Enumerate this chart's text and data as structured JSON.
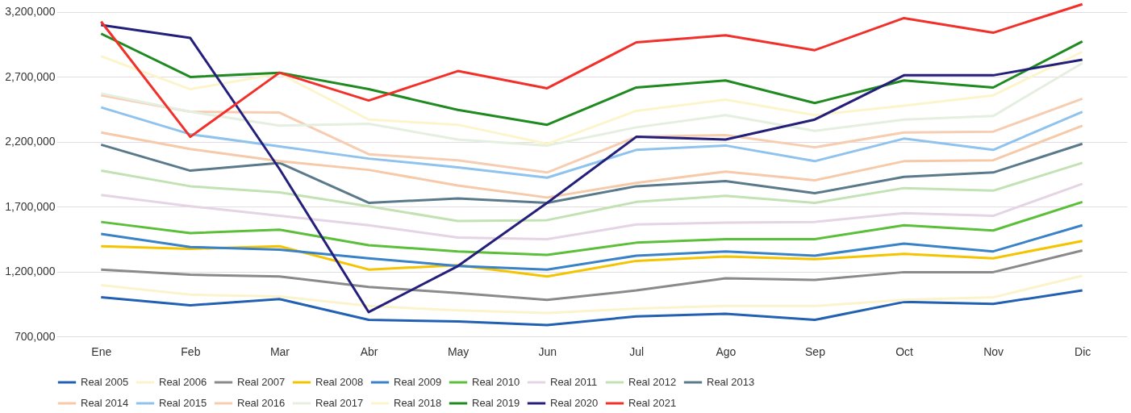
{
  "chart_data": {
    "type": "line",
    "categories": [
      "Ene",
      "Feb",
      "Mar",
      "Abr",
      "May",
      "Jun",
      "Jul",
      "Ago",
      "Sep",
      "Oct",
      "Nov",
      "Dic"
    ],
    "ylim": [
      700000,
      3280000
    ],
    "yticks": [
      {
        "value": 700000,
        "label": "700,000"
      },
      {
        "value": 1200000,
        "label": "1,200,000"
      },
      {
        "value": 1700000,
        "label": "1,700,000"
      },
      {
        "value": 2200000,
        "label": "2,200,000"
      },
      {
        "value": 2700000,
        "label": "2,700,000"
      },
      {
        "value": 3200000,
        "label": "3,200,000"
      }
    ],
    "grid": "y",
    "legend": "bottom",
    "marker": "none",
    "line_style": "solid",
    "series": [
      {
        "name": "Real 2005",
        "color": "#2160b2",
        "values": [
          1001000,
          940000,
          988000,
          827000,
          815000,
          787000,
          854000,
          874000,
          827000,
          965000,
          950000,
          1054000
        ]
      },
      {
        "name": "Real 2006",
        "color": "#fbf3cc",
        "values": [
          1095000,
          1021000,
          1008000,
          934000,
          900000,
          880000,
          914000,
          934000,
          934000,
          981000,
          1001000,
          1168000
        ]
      },
      {
        "name": "Real 2007",
        "color": "#8a8a8a",
        "values": [
          1215000,
          1175000,
          1161000,
          1081000,
          1034000,
          981000,
          1054000,
          1148000,
          1135000,
          1195000,
          1195000,
          1362000
        ]
      },
      {
        "name": "Real 2008",
        "color": "#f5c400",
        "values": [
          1395000,
          1375000,
          1395000,
          1215000,
          1248000,
          1161000,
          1282000,
          1315000,
          1295000,
          1335000,
          1302000,
          1435000
        ]
      },
      {
        "name": "Real 2009",
        "color": "#3a82c8",
        "values": [
          1489000,
          1389000,
          1369000,
          1302000,
          1242000,
          1215000,
          1322000,
          1355000,
          1322000,
          1415000,
          1355000,
          1556000
        ]
      },
      {
        "name": "Real 2010",
        "color": "#5cbf3a",
        "values": [
          1582000,
          1496000,
          1522000,
          1402000,
          1355000,
          1328000,
          1422000,
          1449000,
          1449000,
          1556000,
          1516000,
          1736000
        ]
      },
      {
        "name": "Real 2011",
        "color": "#e4d4e4",
        "values": [
          1790000,
          1703000,
          1629000,
          1556000,
          1462000,
          1449000,
          1562000,
          1576000,
          1582000,
          1649000,
          1629000,
          1876000
        ]
      },
      {
        "name": "Real 2012",
        "color": "#c2e2b3",
        "values": [
          1977000,
          1857000,
          1810000,
          1703000,
          1589000,
          1596000,
          1736000,
          1783000,
          1729000,
          1843000,
          1823000,
          2037000
        ]
      },
      {
        "name": "Real 2013",
        "color": "#5a7a8c",
        "values": [
          2177000,
          1977000,
          2037000,
          1729000,
          1763000,
          1729000,
          1857000,
          1897000,
          1803000,
          1930000,
          1963000,
          2184000
        ]
      },
      {
        "name": "Real 2014",
        "color": "#f6c9a9",
        "values": [
          2271000,
          2144000,
          2050000,
          1983000,
          1863000,
          1770000,
          1883000,
          1970000,
          1903000,
          2050000,
          2057000,
          2324000
        ]
      },
      {
        "name": "Real 2015",
        "color": "#8fc3ee",
        "values": [
          2465000,
          2258000,
          2164000,
          2070000,
          2003000,
          1923000,
          2137000,
          2171000,
          2050000,
          2224000,
          2137000,
          2431000
        ]
      },
      {
        "name": "Real 2016",
        "color": "#f7cdb1",
        "values": [
          2558000,
          2431000,
          2425000,
          2104000,
          2057000,
          1963000,
          2238000,
          2251000,
          2157000,
          2271000,
          2278000,
          2532000
        ]
      },
      {
        "name": "Real 2017",
        "color": "#e4efe0",
        "values": [
          2572000,
          2431000,
          2324000,
          2338000,
          2217000,
          2171000,
          2311000,
          2405000,
          2284000,
          2371000,
          2398000,
          2806000
        ]
      },
      {
        "name": "Real 2018",
        "color": "#fcf5cc",
        "values": [
          2859000,
          2605000,
          2725000,
          2371000,
          2331000,
          2184000,
          2438000,
          2525000,
          2405000,
          2478000,
          2558000,
          2893000
        ]
      },
      {
        "name": "Real 2019",
        "color": "#1f8a1f",
        "values": [
          3033000,
          2699000,
          2732000,
          2605000,
          2445000,
          2331000,
          2618000,
          2672000,
          2498000,
          2672000,
          2618000,
          2973000
        ]
      },
      {
        "name": "Real 2020",
        "color": "#231f7a",
        "values": [
          3100000,
          3000000,
          1990000,
          887000,
          1242000,
          1729000,
          2238000,
          2217000,
          2371000,
          2712000,
          2712000,
          2832000
        ]
      },
      {
        "name": "Real 2021",
        "color": "#f2302a",
        "values": [
          3126000,
          2238000,
          2732000,
          2518000,
          2745000,
          2612000,
          2966000,
          3020000,
          2906000,
          3153000,
          3040000,
          3260000
        ]
      }
    ]
  }
}
